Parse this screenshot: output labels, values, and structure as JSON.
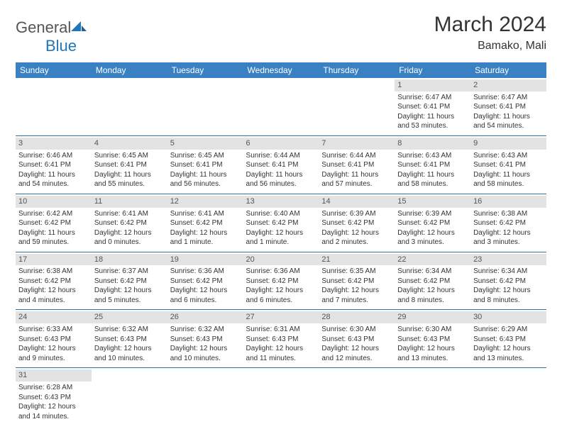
{
  "logo": {
    "text1": "General",
    "text2": "Blue"
  },
  "title": "March 2024",
  "location": "Bamako, Mali",
  "colors": {
    "header_bg": "#3a81c4",
    "header_text": "#ffffff",
    "daynum_bg": "#e3e3e3",
    "row_divider": "#2f6fa8",
    "logo_blue": "#2176b9",
    "text": "#333333"
  },
  "weekdays": [
    "Sunday",
    "Monday",
    "Tuesday",
    "Wednesday",
    "Thursday",
    "Friday",
    "Saturday"
  ],
  "weeks": [
    [
      null,
      null,
      null,
      null,
      null,
      {
        "n": "1",
        "sr": "Sunrise: 6:47 AM",
        "ss": "Sunset: 6:41 PM",
        "dl": "Daylight: 11 hours and 53 minutes."
      },
      {
        "n": "2",
        "sr": "Sunrise: 6:47 AM",
        "ss": "Sunset: 6:41 PM",
        "dl": "Daylight: 11 hours and 54 minutes."
      }
    ],
    [
      {
        "n": "3",
        "sr": "Sunrise: 6:46 AM",
        "ss": "Sunset: 6:41 PM",
        "dl": "Daylight: 11 hours and 54 minutes."
      },
      {
        "n": "4",
        "sr": "Sunrise: 6:45 AM",
        "ss": "Sunset: 6:41 PM",
        "dl": "Daylight: 11 hours and 55 minutes."
      },
      {
        "n": "5",
        "sr": "Sunrise: 6:45 AM",
        "ss": "Sunset: 6:41 PM",
        "dl": "Daylight: 11 hours and 56 minutes."
      },
      {
        "n": "6",
        "sr": "Sunrise: 6:44 AM",
        "ss": "Sunset: 6:41 PM",
        "dl": "Daylight: 11 hours and 56 minutes."
      },
      {
        "n": "7",
        "sr": "Sunrise: 6:44 AM",
        "ss": "Sunset: 6:41 PM",
        "dl": "Daylight: 11 hours and 57 minutes."
      },
      {
        "n": "8",
        "sr": "Sunrise: 6:43 AM",
        "ss": "Sunset: 6:41 PM",
        "dl": "Daylight: 11 hours and 58 minutes."
      },
      {
        "n": "9",
        "sr": "Sunrise: 6:43 AM",
        "ss": "Sunset: 6:41 PM",
        "dl": "Daylight: 11 hours and 58 minutes."
      }
    ],
    [
      {
        "n": "10",
        "sr": "Sunrise: 6:42 AM",
        "ss": "Sunset: 6:42 PM",
        "dl": "Daylight: 11 hours and 59 minutes."
      },
      {
        "n": "11",
        "sr": "Sunrise: 6:41 AM",
        "ss": "Sunset: 6:42 PM",
        "dl": "Daylight: 12 hours and 0 minutes."
      },
      {
        "n": "12",
        "sr": "Sunrise: 6:41 AM",
        "ss": "Sunset: 6:42 PM",
        "dl": "Daylight: 12 hours and 1 minute."
      },
      {
        "n": "13",
        "sr": "Sunrise: 6:40 AM",
        "ss": "Sunset: 6:42 PM",
        "dl": "Daylight: 12 hours and 1 minute."
      },
      {
        "n": "14",
        "sr": "Sunrise: 6:39 AM",
        "ss": "Sunset: 6:42 PM",
        "dl": "Daylight: 12 hours and 2 minutes."
      },
      {
        "n": "15",
        "sr": "Sunrise: 6:39 AM",
        "ss": "Sunset: 6:42 PM",
        "dl": "Daylight: 12 hours and 3 minutes."
      },
      {
        "n": "16",
        "sr": "Sunrise: 6:38 AM",
        "ss": "Sunset: 6:42 PM",
        "dl": "Daylight: 12 hours and 3 minutes."
      }
    ],
    [
      {
        "n": "17",
        "sr": "Sunrise: 6:38 AM",
        "ss": "Sunset: 6:42 PM",
        "dl": "Daylight: 12 hours and 4 minutes."
      },
      {
        "n": "18",
        "sr": "Sunrise: 6:37 AM",
        "ss": "Sunset: 6:42 PM",
        "dl": "Daylight: 12 hours and 5 minutes."
      },
      {
        "n": "19",
        "sr": "Sunrise: 6:36 AM",
        "ss": "Sunset: 6:42 PM",
        "dl": "Daylight: 12 hours and 6 minutes."
      },
      {
        "n": "20",
        "sr": "Sunrise: 6:36 AM",
        "ss": "Sunset: 6:42 PM",
        "dl": "Daylight: 12 hours and 6 minutes."
      },
      {
        "n": "21",
        "sr": "Sunrise: 6:35 AM",
        "ss": "Sunset: 6:42 PM",
        "dl": "Daylight: 12 hours and 7 minutes."
      },
      {
        "n": "22",
        "sr": "Sunrise: 6:34 AM",
        "ss": "Sunset: 6:42 PM",
        "dl": "Daylight: 12 hours and 8 minutes."
      },
      {
        "n": "23",
        "sr": "Sunrise: 6:34 AM",
        "ss": "Sunset: 6:42 PM",
        "dl": "Daylight: 12 hours and 8 minutes."
      }
    ],
    [
      {
        "n": "24",
        "sr": "Sunrise: 6:33 AM",
        "ss": "Sunset: 6:43 PM",
        "dl": "Daylight: 12 hours and 9 minutes."
      },
      {
        "n": "25",
        "sr": "Sunrise: 6:32 AM",
        "ss": "Sunset: 6:43 PM",
        "dl": "Daylight: 12 hours and 10 minutes."
      },
      {
        "n": "26",
        "sr": "Sunrise: 6:32 AM",
        "ss": "Sunset: 6:43 PM",
        "dl": "Daylight: 12 hours and 10 minutes."
      },
      {
        "n": "27",
        "sr": "Sunrise: 6:31 AM",
        "ss": "Sunset: 6:43 PM",
        "dl": "Daylight: 12 hours and 11 minutes."
      },
      {
        "n": "28",
        "sr": "Sunrise: 6:30 AM",
        "ss": "Sunset: 6:43 PM",
        "dl": "Daylight: 12 hours and 12 minutes."
      },
      {
        "n": "29",
        "sr": "Sunrise: 6:30 AM",
        "ss": "Sunset: 6:43 PM",
        "dl": "Daylight: 12 hours and 13 minutes."
      },
      {
        "n": "30",
        "sr": "Sunrise: 6:29 AM",
        "ss": "Sunset: 6:43 PM",
        "dl": "Daylight: 12 hours and 13 minutes."
      }
    ],
    [
      {
        "n": "31",
        "sr": "Sunrise: 6:28 AM",
        "ss": "Sunset: 6:43 PM",
        "dl": "Daylight: 12 hours and 14 minutes."
      },
      null,
      null,
      null,
      null,
      null,
      null
    ]
  ]
}
